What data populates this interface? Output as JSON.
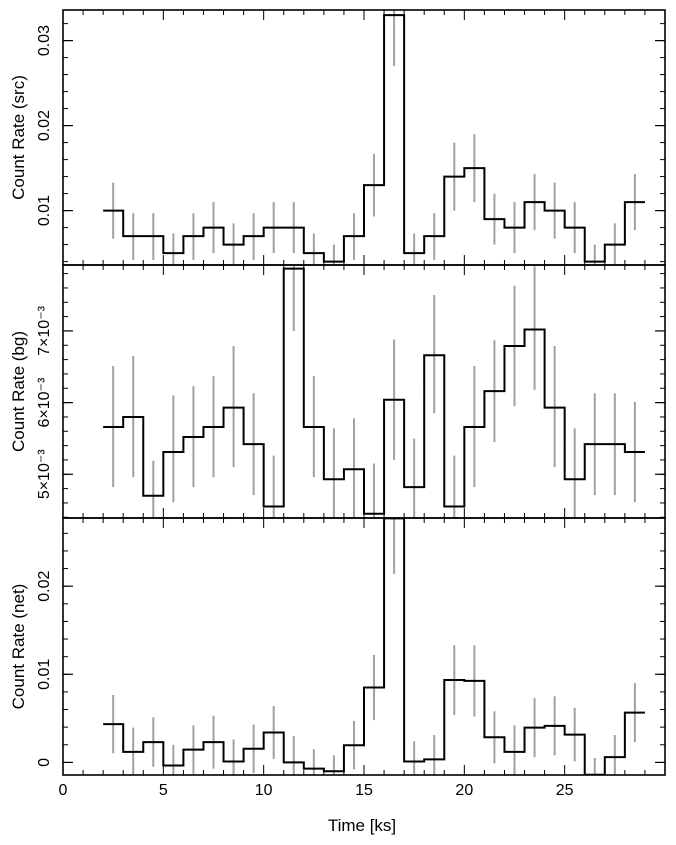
{
  "chart_data": [
    {
      "type": "line",
      "step": true,
      "ylabel": "Count Rate (src)",
      "xlim": [
        0,
        30
      ],
      "ylim": [
        0.0036,
        0.0336
      ],
      "yticks": [
        {
          "value": 0.01,
          "label": "0.01"
        },
        {
          "value": 0.02,
          "label": "0.02"
        },
        {
          "value": 0.03,
          "label": "0.03"
        }
      ],
      "yminor_step": 0.002,
      "series": [
        {
          "bins": [
            [
              2,
              3,
              0.01
            ],
            [
              3,
              4,
              0.007
            ],
            [
              4,
              5,
              0.007
            ],
            [
              5,
              6,
              0.005
            ],
            [
              6,
              7,
              0.007
            ],
            [
              7,
              8,
              0.008
            ],
            [
              8,
              9,
              0.006
            ],
            [
              9,
              10,
              0.007
            ],
            [
              10,
              11,
              0.008
            ],
            [
              11,
              12,
              0.008
            ],
            [
              12,
              13,
              0.005
            ],
            [
              13,
              14,
              0.004
            ],
            [
              14,
              15,
              0.007
            ],
            [
              15,
              16,
              0.013
            ],
            [
              16,
              17,
              0.033
            ],
            [
              17,
              18,
              0.005
            ],
            [
              18,
              19,
              0.007
            ],
            [
              19,
              20,
              0.014
            ],
            [
              20,
              21,
              0.015
            ],
            [
              21,
              22,
              0.009
            ],
            [
              22,
              23,
              0.008
            ],
            [
              23,
              24,
              0.011
            ],
            [
              24,
              25,
              0.01
            ],
            [
              25,
              26,
              0.008
            ],
            [
              26,
              27,
              0.004
            ],
            [
              27,
              28,
              0.006
            ],
            [
              28,
              29,
              0.011
            ]
          ],
          "errors": [
            [
              2.5,
              0.0067,
              0.0133
            ],
            [
              3.5,
              0.0042,
              0.0097
            ],
            [
              4.5,
              0.0042,
              0.0097
            ],
            [
              5.5,
              0.0028,
              0.0073
            ],
            [
              6.5,
              0.0042,
              0.0097
            ],
            [
              7.5,
              0.005,
              0.011
            ],
            [
              8.5,
              0.0035,
              0.0085
            ],
            [
              9.5,
              0.0042,
              0.0097
            ],
            [
              10.5,
              0.005,
              0.011
            ],
            [
              11.5,
              0.005,
              0.011
            ],
            [
              12.5,
              0.0028,
              0.0073
            ],
            [
              13.5,
              0.002,
              0.006
            ],
            [
              14.5,
              0.0042,
              0.0097
            ],
            [
              15.5,
              0.0093,
              0.0167
            ],
            [
              16.5,
              0.027,
              0.039
            ],
            [
              17.5,
              0.0028,
              0.0073
            ],
            [
              18.5,
              0.0042,
              0.0097
            ],
            [
              19.5,
              0.01,
              0.018
            ],
            [
              20.5,
              0.011,
              0.019
            ],
            [
              21.5,
              0.006,
              0.012
            ],
            [
              22.5,
              0.005,
              0.011
            ],
            [
              23.5,
              0.0077,
              0.0143
            ],
            [
              24.5,
              0.0067,
              0.0133
            ],
            [
              25.5,
              0.005,
              0.011
            ],
            [
              26.5,
              0.002,
              0.006
            ],
            [
              27.5,
              0.0035,
              0.0085
            ],
            [
              28.5,
              0.0077,
              0.0143
            ]
          ]
        }
      ]
    },
    {
      "type": "line",
      "step": true,
      "ylabel": "Count Rate (bg)",
      "xlim": [
        0,
        30
      ],
      "ylim": [
        0.00439,
        0.00792
      ],
      "yticks": [
        {
          "value": 0.005,
          "label": "5×10⁻³"
        },
        {
          "value": 0.006,
          "label": "6×10⁻³"
        },
        {
          "value": 0.007,
          "label": "7×10⁻³"
        }
      ],
      "yminor_step": 0.0002,
      "series": [
        {
          "bins": [
            [
              2,
              3,
              0.00566
            ],
            [
              3,
              4,
              0.0058
            ],
            [
              4,
              5,
              0.0047
            ],
            [
              5,
              6,
              0.00531
            ],
            [
              6,
              7,
              0.00552
            ],
            [
              7,
              8,
              0.00566
            ],
            [
              8,
              9,
              0.00593
            ],
            [
              9,
              10,
              0.00542
            ],
            [
              10,
              11,
              0.00455
            ],
            [
              11,
              12,
              0.00787
            ],
            [
              12,
              13,
              0.00566
            ],
            [
              13,
              14,
              0.00493
            ],
            [
              14,
              15,
              0.00507
            ],
            [
              15,
              16,
              0.00445
            ],
            [
              16,
              17,
              0.00604
            ],
            [
              17,
              18,
              0.00482
            ],
            [
              18,
              19,
              0.00666
            ],
            [
              19,
              20,
              0.00455
            ],
            [
              20,
              21,
              0.00566
            ],
            [
              21,
              22,
              0.00616
            ],
            [
              22,
              23,
              0.00679
            ],
            [
              23,
              24,
              0.00702
            ],
            [
              24,
              25,
              0.00593
            ],
            [
              25,
              26,
              0.00493
            ],
            [
              26,
              27,
              0.00542
            ],
            [
              27,
              28,
              0.00542
            ],
            [
              28,
              29,
              0.00531
            ]
          ],
          "errors": [
            [
              2.5,
              0.00482,
              0.00651
            ],
            [
              3.5,
              0.00496,
              0.00665
            ],
            [
              4.5,
              0.00422,
              0.00519
            ],
            [
              5.5,
              0.00461,
              0.0061
            ],
            [
              6.5,
              0.00482,
              0.00623
            ],
            [
              7.5,
              0.00496,
              0.00637
            ],
            [
              8.5,
              0.0051,
              0.00679
            ],
            [
              9.5,
              0.00471,
              0.00613
            ],
            [
              10.5,
              0.00384,
              0.00526
            ],
            [
              11.5,
              0.007,
              0.0087
            ],
            [
              12.5,
              0.00496,
              0.00637
            ],
            [
              13.5,
              0.00422,
              0.00564
            ],
            [
              14.5,
              0.00436,
              0.00578
            ],
            [
              15.5,
              0.00375,
              0.00515
            ],
            [
              16.5,
              0.0052,
              0.00688
            ],
            [
              17.5,
              0.00413,
              0.0055
            ],
            [
              18.5,
              0.00585,
              0.0075
            ],
            [
              19.5,
              0.00384,
              0.00526
            ],
            [
              20.5,
              0.00482,
              0.00651
            ],
            [
              21.5,
              0.00545,
              0.00687
            ],
            [
              22.5,
              0.00595,
              0.00763
            ],
            [
              23.5,
              0.00618,
              0.0079
            ],
            [
              24.5,
              0.0051,
              0.00679
            ],
            [
              25.5,
              0.00422,
              0.00564
            ],
            [
              26.5,
              0.00471,
              0.00613
            ],
            [
              27.5,
              0.00471,
              0.00613
            ],
            [
              28.5,
              0.00461,
              0.00601
            ]
          ]
        }
      ]
    },
    {
      "type": "line",
      "step": true,
      "xlabel": "Time [ks]",
      "ylabel": "Count Rate (net)",
      "xlim": [
        0,
        30
      ],
      "ylim": [
        -0.00143,
        0.02774
      ],
      "yticks": [
        {
          "value": 0,
          "label": "0"
        },
        {
          "value": 0.01,
          "label": "0.01"
        },
        {
          "value": 0.02,
          "label": "0.02"
        }
      ],
      "yminor_step": 0.002,
      "xticks": [
        {
          "value": 0,
          "label": "0"
        },
        {
          "value": 5,
          "label": "5"
        },
        {
          "value": 10,
          "label": "10"
        },
        {
          "value": 15,
          "label": "15"
        },
        {
          "value": 20,
          "label": "20"
        },
        {
          "value": 25,
          "label": "25"
        }
      ],
      "xminor_step": 1,
      "series": [
        {
          "bins": [
            [
              2,
              3,
              0.00435
            ],
            [
              3,
              4,
              0.0012
            ],
            [
              4,
              5,
              0.0023
            ],
            [
              5,
              6,
              -0.00035
            ],
            [
              6,
              7,
              0.00145
            ],
            [
              7,
              8,
              0.0023
            ],
            [
              8,
              9,
              0.0001
            ],
            [
              9,
              10,
              0.00155
            ],
            [
              10,
              11,
              0.0034
            ],
            [
              11,
              12,
              0.0
            ],
            [
              12,
              13,
              -0.0007
            ],
            [
              13,
              14,
              -0.001
            ],
            [
              14,
              15,
              0.00195
            ],
            [
              15,
              16,
              0.0085
            ],
            [
              16,
              17,
              0.0277
            ],
            [
              17,
              18,
              0.0001
            ],
            [
              18,
              19,
              0.00035
            ],
            [
              19,
              20,
              0.00935
            ],
            [
              20,
              21,
              0.00925
            ],
            [
              21,
              22,
              0.00285
            ],
            [
              22,
              23,
              0.0012
            ],
            [
              23,
              24,
              0.00395
            ],
            [
              24,
              25,
              0.00415
            ],
            [
              25,
              26,
              0.00315
            ],
            [
              26,
              27,
              -0.0014
            ],
            [
              27,
              28,
              0.0006
            ],
            [
              28,
              29,
              0.00565
            ]
          ],
          "errors": [
            [
              2.5,
              0.00105,
              0.00765
            ],
            [
              3.5,
              -0.0015,
              0.00395
            ],
            [
              4.5,
              -0.0005,
              0.0051
            ],
            [
              5.5,
              -0.0027,
              0.002
            ],
            [
              6.5,
              -0.0013,
              0.0042
            ],
            [
              7.5,
              -0.0007,
              0.0053
            ],
            [
              8.5,
              -0.0024,
              0.0026
            ],
            [
              9.5,
              -0.0012,
              0.0043
            ],
            [
              10.5,
              0.0004,
              0.0064
            ],
            [
              11.5,
              -0.003,
              0.003
            ],
            [
              12.5,
              -0.0029,
              0.0015
            ],
            [
              13.5,
              -0.0028,
              0.0008
            ],
            [
              14.5,
              -0.0008,
              0.0047
            ],
            [
              15.5,
              0.0048,
              0.0122
            ],
            [
              16.5,
              0.0214,
              0.034
            ],
            [
              17.5,
              -0.0022,
              0.0024
            ],
            [
              18.5,
              -0.0024,
              0.0031
            ],
            [
              19.5,
              0.0054,
              0.0133
            ],
            [
              20.5,
              0.0052,
              0.0133
            ],
            [
              21.5,
              -0.0001,
              0.0058
            ],
            [
              22.5,
              -0.0018,
              0.0042
            ],
            [
              23.5,
              0.0006,
              0.0073
            ],
            [
              24.5,
              0.0008,
              0.0075
            ],
            [
              25.5,
              0.0001,
              0.0062
            ],
            [
              26.5,
              -0.0033,
              0.0005
            ],
            [
              27.5,
              -0.0019,
              0.0031
            ],
            [
              28.5,
              0.0023,
              0.009
            ]
          ]
        }
      ]
    }
  ]
}
